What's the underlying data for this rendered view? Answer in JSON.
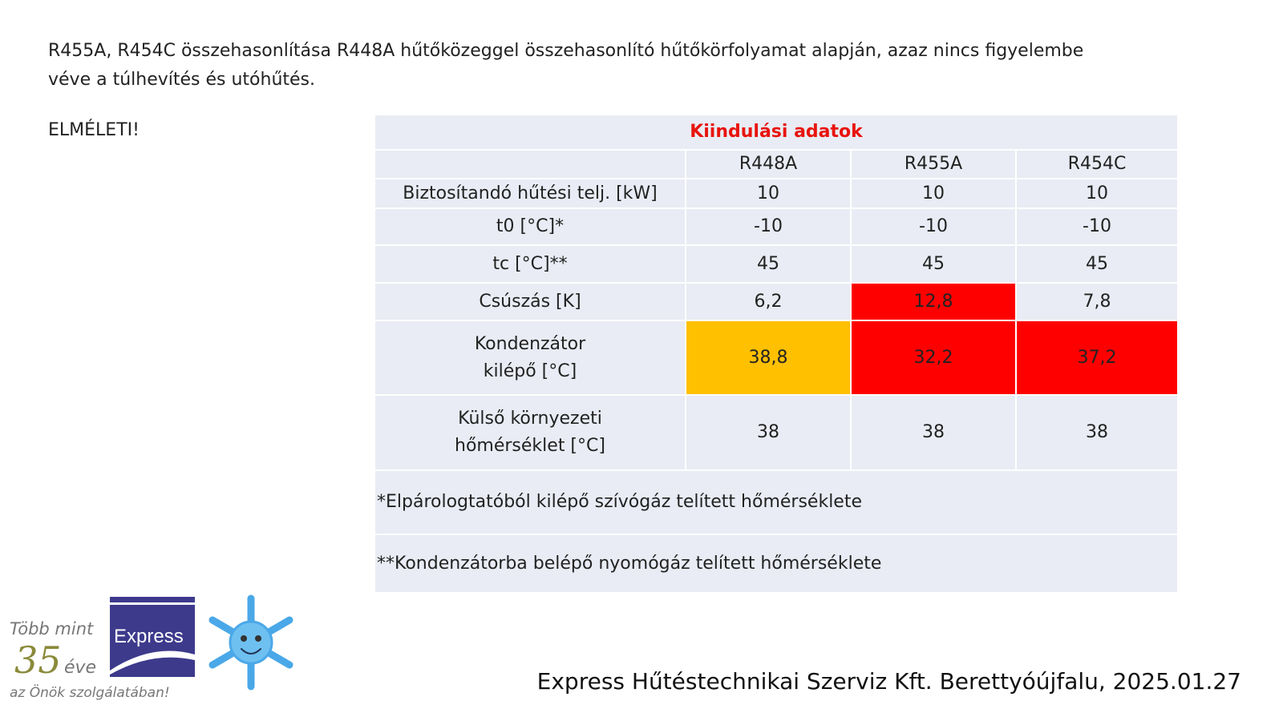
{
  "intro": "R455A, R454C összehasonlítása R448A hűtőközeggel összehasonlító hűtőkörfolyamat alapján, azaz nincs figyelembe véve a túlhevítés és utóhűtés.",
  "theory_label": "ELMÉLETI!",
  "table": {
    "title": "Kiindulási adatok",
    "columns": [
      "R448A",
      "R455A",
      "R454C"
    ],
    "rows": [
      {
        "label": "Biztosítandó hűtési telj. [kW]",
        "values": [
          "10",
          "10",
          "10"
        ]
      },
      {
        "label": "t0 [°C]*",
        "values": [
          "-10",
          "-10",
          "-10"
        ]
      },
      {
        "label": "tc [°C]**",
        "values": [
          "45",
          "45",
          "45"
        ]
      },
      {
        "label": "Csúszás [K]",
        "values": [
          "6,2",
          "12,8",
          "7,8"
        ]
      },
      {
        "label": "Kondenzátor kilépő [°C]",
        "values": [
          "38,8",
          "32,2",
          "37,2"
        ]
      },
      {
        "label": "Külső környezeti hőmérséklet [°C]",
        "values": [
          "38",
          "38",
          "38"
        ]
      }
    ],
    "note1": "*Elpárologtatóból kilépő szívógáz telített hőmérséklete",
    "note2": "**Kondenzátorba belépő nyomógáz telített hőmérséklete"
  },
  "colors": {
    "highlight_red": "#ff0000",
    "highlight_yellow": "#ffc000",
    "title_red": "#e8140e"
  },
  "logo": {
    "line1": "Több mint",
    "number": "35",
    "suffix": "éve",
    "line3": "az Önök szolgálatában!",
    "brand": "Express"
  },
  "footer": "Express Hűtéstechnikai Szerviz Kft. Berettyóújfalu, 2025.01.27"
}
